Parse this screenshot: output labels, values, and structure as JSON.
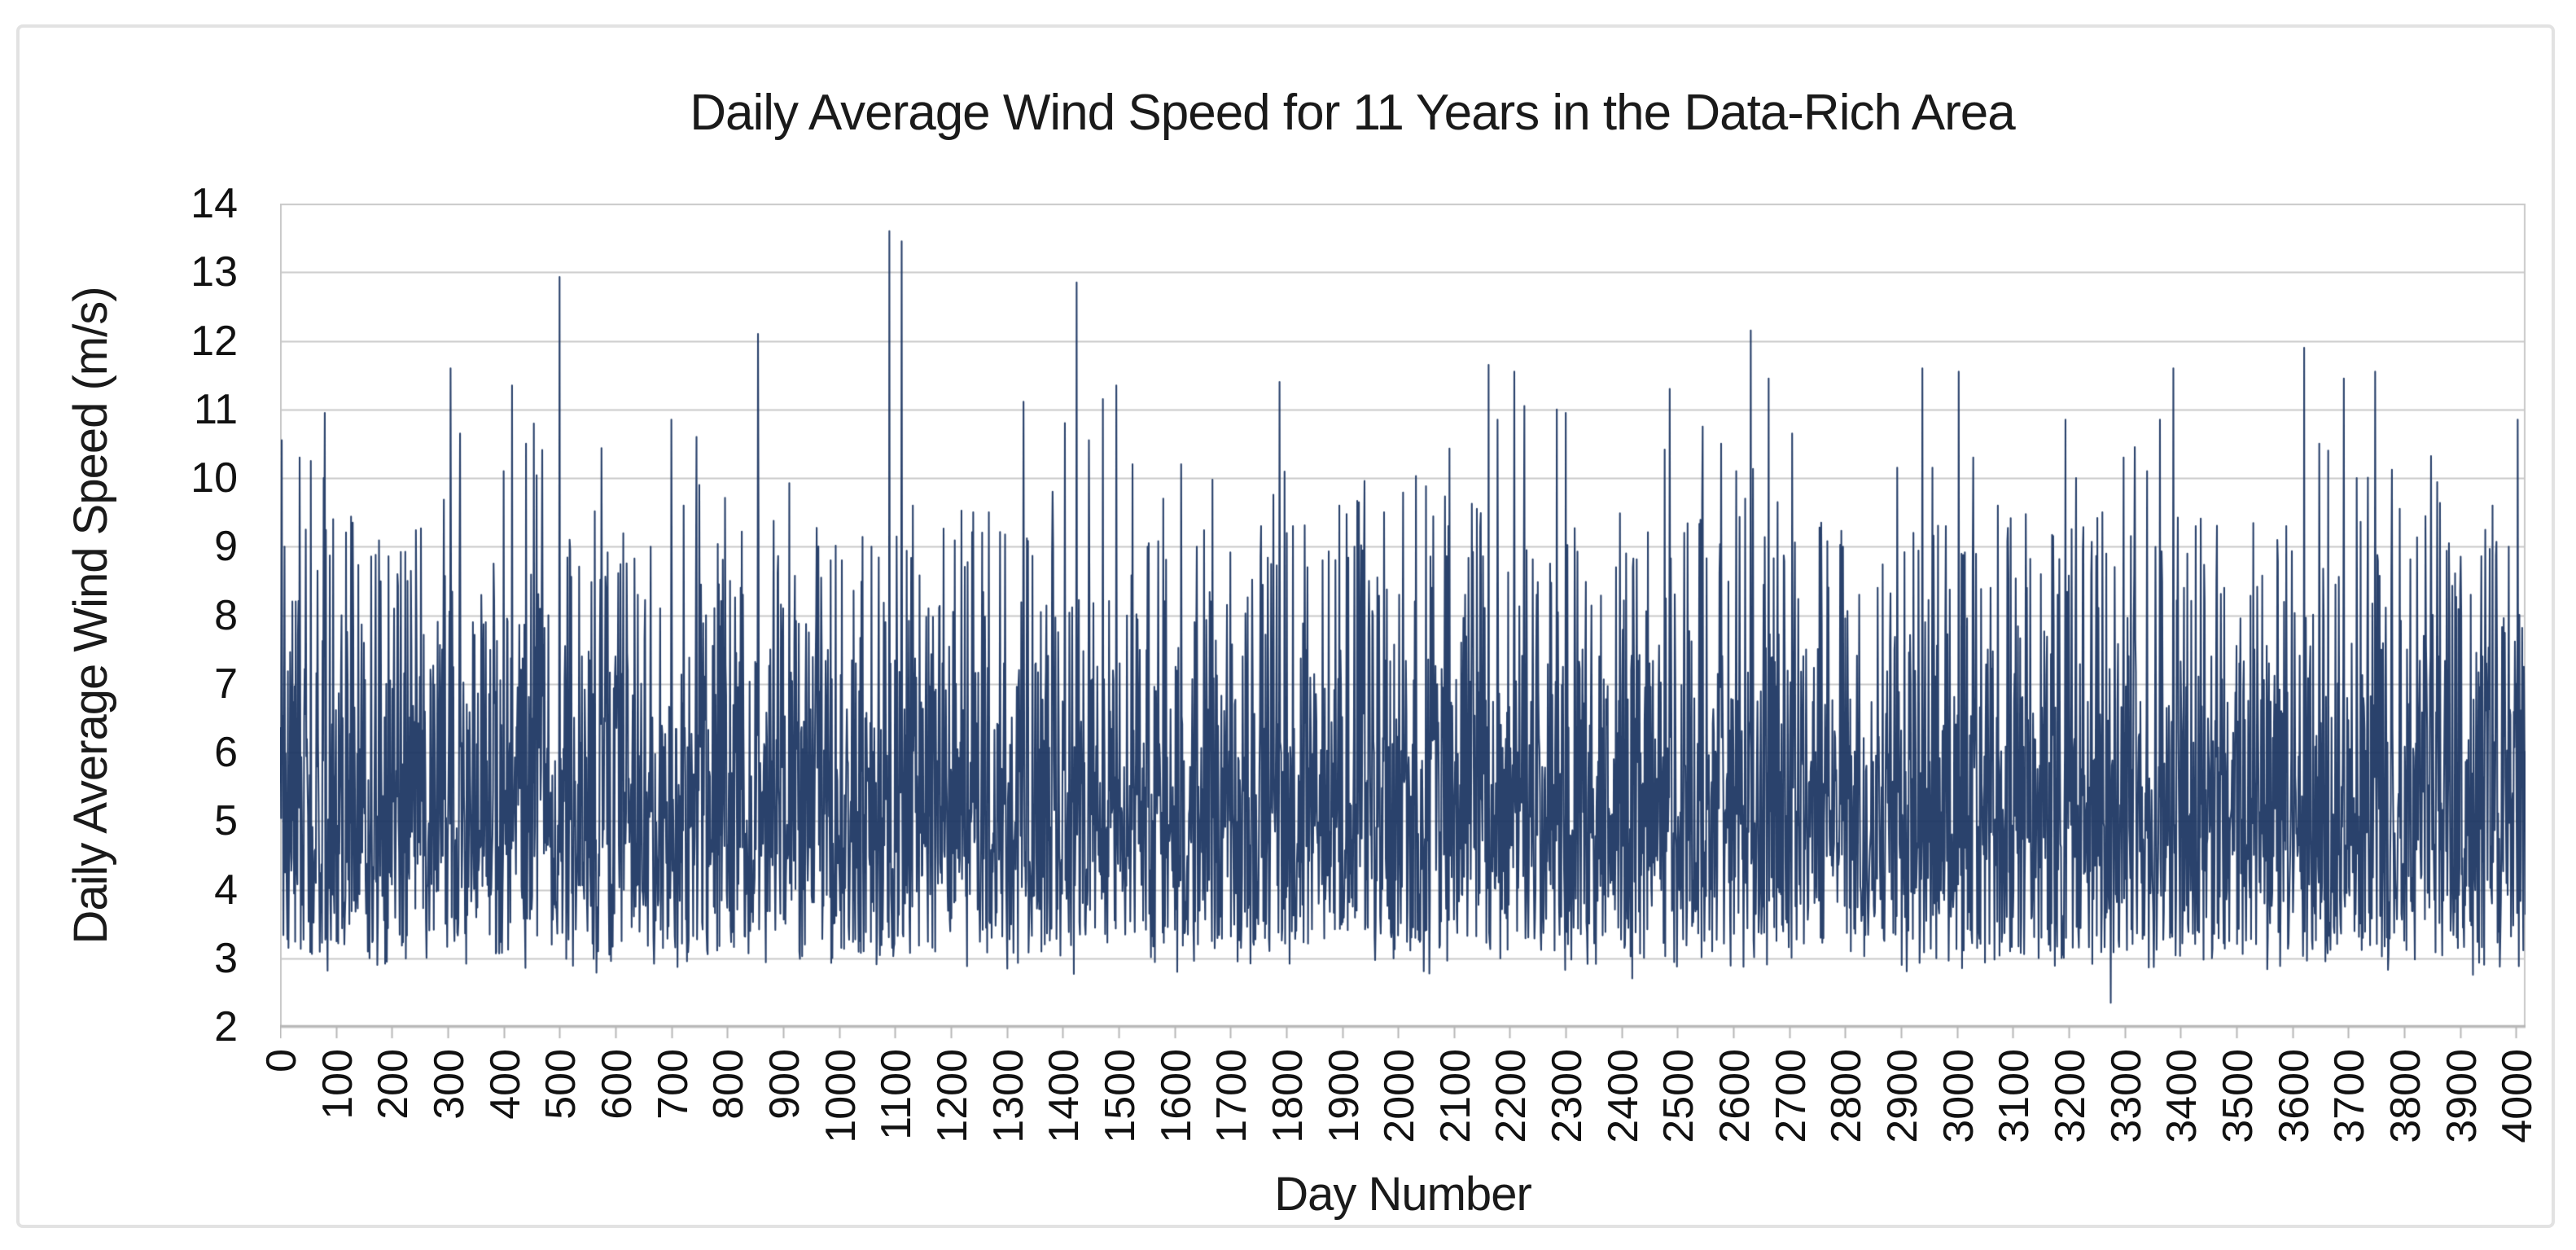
{
  "chart_data": {
    "type": "line",
    "title": "Daily Average Wind Speed for 11 Years in the Data-Rich Area",
    "xlabel": "Day Number",
    "ylabel": "Daily Average Wind Speed (m/s)",
    "ylim": [
      2,
      14
    ],
    "y_tick_step": 1,
    "y_ticks": [
      14,
      13,
      12,
      11,
      10,
      9,
      8,
      7,
      6,
      5,
      4,
      3,
      2
    ],
    "x_ticks": [
      0,
      100,
      200,
      300,
      400,
      500,
      600,
      700,
      800,
      900,
      1000,
      1100,
      1200,
      1300,
      1400,
      1500,
      1600,
      1700,
      1800,
      1900,
      2000,
      2100,
      2200,
      2300,
      2400,
      2500,
      2600,
      2700,
      2800,
      2900,
      3000,
      3100,
      3200,
      3300,
      3400,
      3500,
      3600,
      3700,
      3800,
      3900,
      4000
    ],
    "n_days": 4018,
    "grid": true,
    "legend": false,
    "series_name": "Daily Average Wind Speed",
    "series_color": "#1f3864",
    "grid_color": "#c9c9c9",
    "axis_color": "#b7b7b7",
    "text_color": "#1a1a1a",
    "plot_background": "#ffffff",
    "value_min": 2.35,
    "value_max": 13.6,
    "typical_range": [
      3.5,
      7.5
    ],
    "rng_seed": 1357924,
    "base": {
      "offset": 2.15,
      "scale": 1.05,
      "shape": 3,
      "soft_high": 8.8,
      "soft_high_factor": 0.32,
      "soft_low": 3.45,
      "soft_low_factor": 0.62,
      "clamp_min": 2.4,
      "clamp_max": 12.2
    },
    "anchors": [
      [
        3,
        10.55
      ],
      [
        8,
        9.0
      ],
      [
        22,
        8.2
      ],
      [
        35,
        10.3
      ],
      [
        55,
        10.25
      ],
      [
        80,
        10.95
      ],
      [
        95,
        9.4
      ],
      [
        110,
        8.0
      ],
      [
        130,
        9.35
      ],
      [
        150,
        7.6
      ],
      [
        170,
        6.9
      ],
      [
        190,
        7.0
      ],
      [
        210,
        8.6
      ],
      [
        228,
        8.5
      ],
      [
        250,
        7.1
      ],
      [
        270,
        7.0
      ],
      [
        290,
        7.5
      ],
      [
        305,
        11.6
      ],
      [
        322,
        10.65
      ],
      [
        345,
        7.9
      ],
      [
        368,
        7.9
      ],
      [
        383,
        8.2
      ],
      [
        400,
        10.1
      ],
      [
        415,
        11.35
      ],
      [
        440,
        10.5
      ],
      [
        468,
        8.35
      ],
      [
        500,
        12.93
      ],
      [
        518,
        9.1
      ],
      [
        540,
        7.4
      ],
      [
        560,
        6.85
      ],
      [
        580,
        6.5
      ],
      [
        600,
        7.4
      ],
      [
        622,
        7.2
      ],
      [
        640,
        8.3
      ],
      [
        663,
        9.0
      ],
      [
        680,
        8.1
      ],
      [
        700,
        10.85
      ],
      [
        722,
        9.6
      ],
      [
        745,
        10.6
      ],
      [
        762,
        8.0
      ],
      [
        785,
        8.45
      ],
      [
        805,
        8.5
      ],
      [
        828,
        8.3
      ],
      [
        855,
        12.1
      ],
      [
        877,
        7.5
      ],
      [
        900,
        8.1
      ],
      [
        920,
        7.6
      ],
      [
        940,
        6.8
      ],
      [
        962,
        6.7
      ],
      [
        985,
        8.8
      ],
      [
        1005,
        8.8
      ],
      [
        1030,
        7.3
      ],
      [
        1058,
        9.0
      ],
      [
        1090,
        13.6
      ],
      [
        1112,
        13.45
      ],
      [
        1132,
        9.6
      ],
      [
        1160,
        8.1
      ],
      [
        1185,
        7.3
      ],
      [
        1205,
        8.0
      ],
      [
        1240,
        9.5
      ],
      [
        1268,
        9.5
      ],
      [
        1295,
        7.3
      ],
      [
        1322,
        7.2
      ],
      [
        1352,
        7.3
      ],
      [
        1382,
        9.8
      ],
      [
        1404,
        10.8
      ],
      [
        1425,
        12.85
      ],
      [
        1448,
        8.1
      ],
      [
        1472,
        11.15
      ],
      [
        1496,
        11.35
      ],
      [
        1525,
        10.2
      ],
      [
        1552,
        9.0
      ],
      [
        1580,
        9.7
      ],
      [
        1612,
        10.2
      ],
      [
        1640,
        9.0
      ],
      [
        1665,
        8.2
      ],
      [
        1694,
        8.15
      ],
      [
        1722,
        7.4
      ],
      [
        1755,
        9.3
      ],
      [
        1788,
        11.4
      ],
      [
        1812,
        9.3
      ],
      [
        1838,
        8.7
      ],
      [
        1865,
        8.8
      ],
      [
        1895,
        9.6
      ],
      [
        1922,
        9.0
      ],
      [
        1948,
        8.5
      ],
      [
        1975,
        9.5
      ],
      [
        2002,
        8.3
      ],
      [
        2030,
        8.2
      ],
      [
        2060,
        8.4
      ],
      [
        2090,
        9.3
      ],
      [
        2120,
        8.3
      ],
      [
        2162,
        11.65
      ],
      [
        2178,
        10.85
      ],
      [
        2208,
        11.55
      ],
      [
        2226,
        11.05
      ],
      [
        2248,
        8.3
      ],
      [
        2284,
        11.0
      ],
      [
        2300,
        10.95
      ],
      [
        2330,
        7.5
      ],
      [
        2360,
        7.4
      ],
      [
        2390,
        8.7
      ],
      [
        2420,
        8.7
      ],
      [
        2450,
        7.3
      ],
      [
        2486,
        11.3
      ],
      [
        2512,
        9.2
      ],
      [
        2545,
        10.75
      ],
      [
        2578,
        10.5
      ],
      [
        2605,
        10.1
      ],
      [
        2631,
        12.15
      ],
      [
        2663,
        11.45
      ],
      [
        2705,
        10.65
      ],
      [
        2730,
        7.5
      ],
      [
        2757,
        9.35
      ],
      [
        2796,
        9.0
      ],
      [
        2825,
        8.3
      ],
      [
        2858,
        8.4
      ],
      [
        2893,
        10.15
      ],
      [
        2922,
        9.2
      ],
      [
        2938,
        11.6
      ],
      [
        2956,
        10.15
      ],
      [
        2980,
        9.3
      ],
      [
        3003,
        11.55
      ],
      [
        3029,
        10.3
      ],
      [
        3060,
        8.4
      ],
      [
        3092,
        8.6
      ],
      [
        3125,
        8.4
      ],
      [
        3150,
        8.6
      ],
      [
        3180,
        8.3
      ],
      [
        3194,
        10.85
      ],
      [
        3213,
        10.0
      ],
      [
        3240,
        8.6
      ],
      [
        3260,
        9.5
      ],
      [
        3275,
        2.35
      ],
      [
        3298,
        10.3
      ],
      [
        3318,
        10.45
      ],
      [
        3340,
        10.1
      ],
      [
        3363,
        10.85
      ],
      [
        3387,
        11.6
      ],
      [
        3412,
        8.9
      ],
      [
        3427,
        9.3
      ],
      [
        3455,
        7.4
      ],
      [
        3478,
        8.4
      ],
      [
        3505,
        7.3
      ],
      [
        3532,
        7.5
      ],
      [
        3558,
        7.3
      ],
      [
        3589,
        9.3
      ],
      [
        3621,
        11.9
      ],
      [
        3648,
        10.5
      ],
      [
        3664,
        10.4
      ],
      [
        3692,
        11.45
      ],
      [
        3715,
        10.0
      ],
      [
        3748,
        11.55
      ],
      [
        3777,
        8.6
      ],
      [
        3805,
        7.5
      ],
      [
        3835,
        7.7
      ],
      [
        3862,
        7.4
      ],
      [
        3880,
        9.05
      ],
      [
        3902,
        8.0
      ],
      [
        3919,
        8.3
      ],
      [
        3940,
        7.4
      ],
      [
        3958,
        9.6
      ],
      [
        3987,
        9.0
      ],
      [
        4003,
        10.85
      ],
      [
        4016,
        6.0
      ]
    ]
  }
}
